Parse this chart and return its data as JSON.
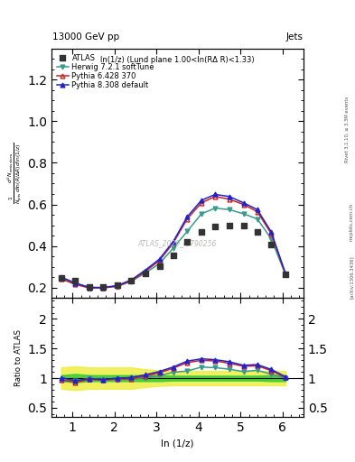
{
  "title_top": "13000 GeV pp",
  "title_right": "Jets",
  "plot_label": "ln(1/z) (Lund plane 1.00<ln(RΔ R)<1.33)",
  "watermark": "ATLAS_2020_I1790256",
  "ylabel_main_parts": [
    "$\\frac{1}{N_{\\rm jets}}$",
    "$\\frac{d^2 N_{\\rm emissions}}{d\\ln(R/\\Delta R)\\,d\\ln(1/z)}$"
  ],
  "ylabel_ratio": "Ratio to ATLAS",
  "xlabel": "ln (1/z)",
  "right_label_top": "Rivet 3.1.10, ≥ 3.3M events",
  "right_label_mid": "mcplots.cern.ch",
  "right_label_bot": "[arXiv:1306.3436]",
  "xlim": [
    0.5,
    6.5
  ],
  "ylim_main": [
    0.15,
    1.35
  ],
  "ylim_ratio": [
    0.35,
    2.35
  ],
  "yticks_main": [
    0.2,
    0.4,
    0.6,
    0.8,
    1.0,
    1.2
  ],
  "yticks_ratio": [
    0.5,
    1.0,
    1.5,
    2.0
  ],
  "xticks": [
    1,
    2,
    3,
    4,
    5,
    6
  ],
  "x_atlas": [
    0.73,
    1.07,
    1.4,
    1.73,
    2.07,
    2.4,
    2.73,
    3.07,
    3.4,
    3.73,
    4.07,
    4.4,
    4.73,
    5.07,
    5.4,
    5.73,
    6.07
  ],
  "y_atlas": [
    0.248,
    0.232,
    0.202,
    0.205,
    0.21,
    0.235,
    0.268,
    0.303,
    0.355,
    0.42,
    0.468,
    0.495,
    0.5,
    0.5,
    0.468,
    0.408,
    0.262
  ],
  "x_herwig": [
    0.73,
    1.07,
    1.4,
    1.73,
    2.07,
    2.4,
    2.73,
    3.07,
    3.4,
    3.73,
    4.07,
    4.4,
    4.73,
    5.07,
    5.4,
    5.73,
    6.07
  ],
  "y_herwig": [
    0.24,
    0.22,
    0.202,
    0.2,
    0.205,
    0.23,
    0.27,
    0.315,
    0.39,
    0.47,
    0.555,
    0.582,
    0.575,
    0.555,
    0.53,
    0.435,
    0.262
  ],
  "x_pythia6": [
    0.73,
    1.07,
    1.4,
    1.73,
    2.07,
    2.4,
    2.73,
    3.07,
    3.4,
    3.73,
    4.07,
    4.4,
    4.73,
    5.07,
    5.4,
    5.73,
    6.07
  ],
  "y_pythia6": [
    0.242,
    0.215,
    0.198,
    0.198,
    0.207,
    0.232,
    0.277,
    0.33,
    0.415,
    0.53,
    0.608,
    0.638,
    0.625,
    0.6,
    0.565,
    0.46,
    0.265
  ],
  "x_pythia8": [
    0.73,
    1.07,
    1.4,
    1.73,
    2.07,
    2.4,
    2.73,
    3.07,
    3.4,
    3.73,
    4.07,
    4.4,
    4.73,
    5.07,
    5.4,
    5.73,
    6.07
  ],
  "y_pythia8": [
    0.25,
    0.222,
    0.2,
    0.2,
    0.21,
    0.237,
    0.283,
    0.337,
    0.422,
    0.54,
    0.62,
    0.648,
    0.638,
    0.608,
    0.575,
    0.468,
    0.268
  ],
  "ratio_herwig": [
    0.968,
    0.948,
    1.0,
    0.976,
    0.976,
    0.979,
    1.007,
    1.04,
    1.099,
    1.119,
    1.186,
    1.176,
    1.15,
    1.11,
    1.132,
    1.067,
    1.0
  ],
  "ratio_pythia6": [
    0.976,
    0.927,
    0.98,
    0.966,
    0.986,
    0.987,
    1.034,
    1.089,
    1.169,
    1.262,
    1.299,
    1.289,
    1.25,
    1.2,
    1.207,
    1.127,
    1.012
  ],
  "ratio_pythia8": [
    1.008,
    0.957,
    0.99,
    0.976,
    1.0,
    1.009,
    1.056,
    1.112,
    1.188,
    1.286,
    1.325,
    1.31,
    1.276,
    1.216,
    1.228,
    1.147,
    1.023
  ],
  "band_x": [
    0.73,
    1.07,
    1.4,
    1.73,
    2.07,
    2.4,
    2.73,
    3.07,
    3.4,
    3.73,
    4.07,
    4.4,
    4.73,
    5.07,
    5.4,
    5.73,
    6.07
  ],
  "band_green_low": [
    0.95,
    0.93,
    0.95,
    0.95,
    0.95,
    0.95,
    0.95,
    0.95,
    0.96,
    0.96,
    0.96,
    0.96,
    0.96,
    0.96,
    0.96,
    0.95,
    0.95
  ],
  "band_green_high": [
    1.05,
    1.07,
    1.05,
    1.05,
    1.05,
    1.05,
    1.05,
    1.05,
    1.04,
    1.04,
    1.04,
    1.04,
    1.04,
    1.04,
    1.04,
    1.05,
    1.05
  ],
  "band_yellow_low": [
    0.82,
    0.8,
    0.82,
    0.82,
    0.82,
    0.82,
    0.85,
    0.87,
    0.88,
    0.88,
    0.88,
    0.88,
    0.88,
    0.88,
    0.88,
    0.88,
    0.88
  ],
  "band_yellow_high": [
    1.18,
    1.2,
    1.18,
    1.18,
    1.18,
    1.18,
    1.15,
    1.13,
    1.12,
    1.12,
    1.12,
    1.12,
    1.12,
    1.12,
    1.12,
    1.12,
    1.12
  ],
  "color_atlas": "#333333",
  "color_herwig": "#3a9b8c",
  "color_pythia6": "#cc2222",
  "color_pythia8": "#2222cc",
  "color_green": "#33cc33",
  "color_yellow": "#eeee44"
}
